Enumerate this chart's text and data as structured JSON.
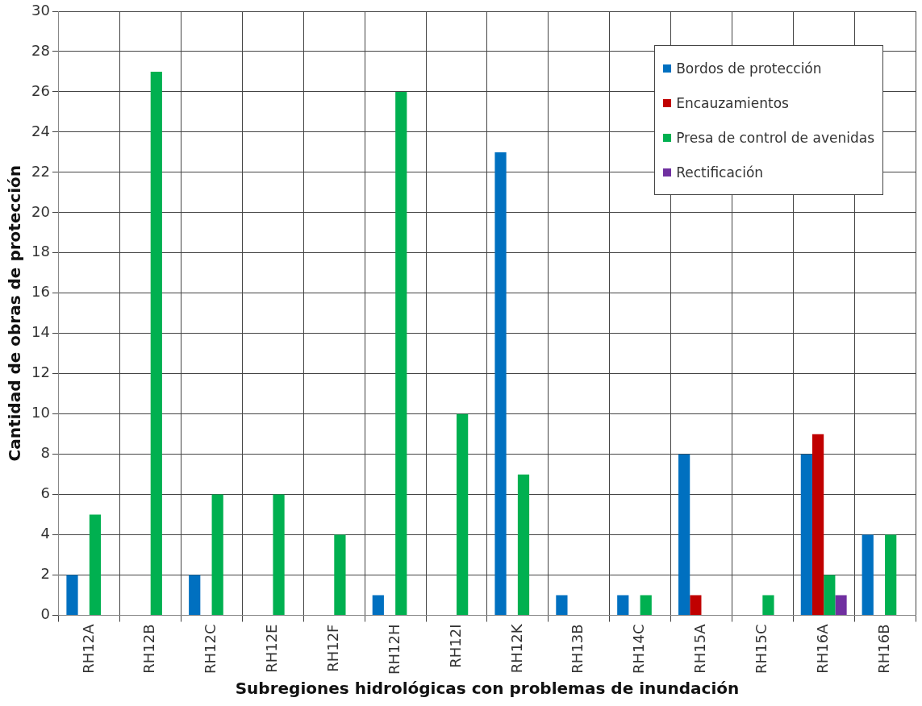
{
  "chart_data": {
    "type": "bar",
    "xlabel": "Subregiones hidrológicas con problemas de inundación",
    "ylabel": "Cantidad de obras de protección",
    "categories": [
      "RH12A",
      "RH12B",
      "RH12C",
      "RH12E",
      "RH12F",
      "RH12H",
      "RH12I",
      "RH12K",
      "RH13B",
      "RH14C",
      "RH15A",
      "RH15C",
      "RH16A",
      "RH16B"
    ],
    "series": [
      {
        "name": "Bordos de protección",
        "color": "#0070c0",
        "values": [
          2,
          0,
          2,
          0,
          0,
          1,
          0,
          23,
          1,
          1,
          8,
          0,
          8,
          4
        ]
      },
      {
        "name": "Encauzamientos",
        "color": "#c00000",
        "values": [
          0,
          0,
          0,
          0,
          0,
          0,
          0,
          0,
          0,
          0,
          1,
          0,
          9,
          0
        ]
      },
      {
        "name": "Presa de control de avenidas",
        "color": "#00b050",
        "values": [
          5,
          27,
          6,
          6,
          4,
          26,
          10,
          7,
          0,
          1,
          0,
          1,
          2,
          4
        ]
      },
      {
        "name": "Rectificación",
        "color": "#7030a0",
        "values": [
          0,
          0,
          0,
          0,
          0,
          0,
          0,
          0,
          0,
          0,
          0,
          0,
          1,
          0
        ]
      }
    ],
    "ylim": [
      0,
      30
    ],
    "yticks": [
      0,
      2,
      4,
      6,
      8,
      10,
      12,
      14,
      16,
      18,
      20,
      22,
      24,
      26,
      28,
      30
    ],
    "grid": true,
    "legend": "top right"
  }
}
